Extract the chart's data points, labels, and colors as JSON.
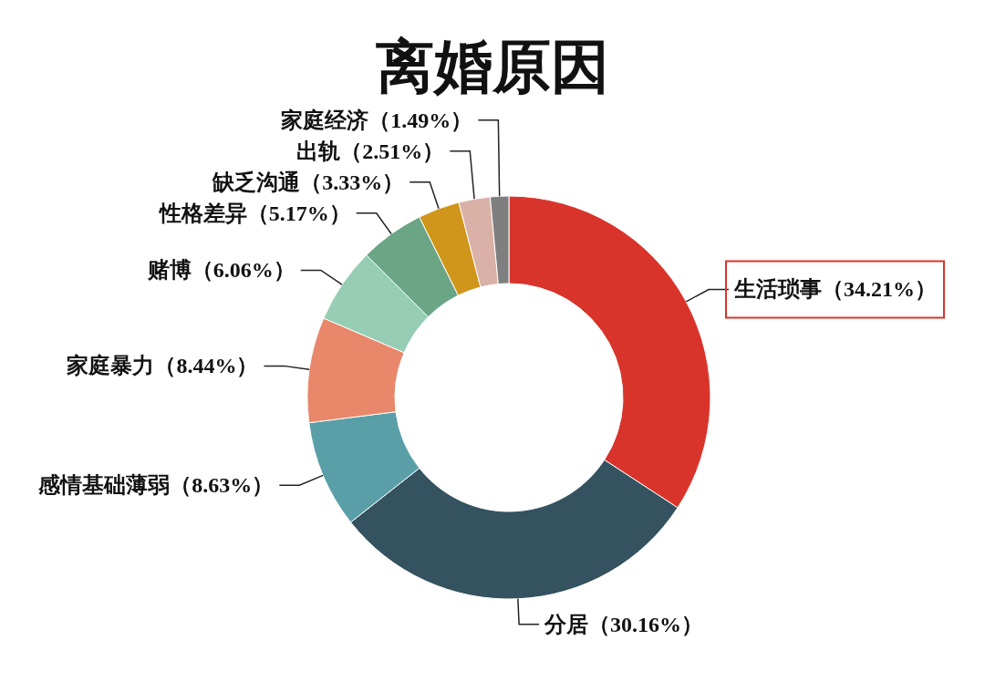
{
  "chart_data": {
    "type": "donut",
    "title": "离婚原因",
    "categories": [
      "生活琐事",
      "分居",
      "感情基础薄弱",
      "家庭暴力",
      "赌博",
      "性格差异",
      "缺乏沟通",
      "出轨",
      "家庭经济"
    ],
    "values": [
      34.21,
      30.16,
      8.63,
      8.44,
      6.06,
      5.17,
      3.33,
      2.51,
      1.49
    ],
    "value_labels": [
      "（34.21%）",
      "（30.16%）",
      "（8.63%）",
      "（8.44%）",
      "（6.06%）",
      "（5.17%）",
      "（3.33%）",
      "（2.51%）",
      "（1.49%）"
    ],
    "colors": [
      "#d9342b",
      "#34525f",
      "#5a9fa8",
      "#e8876a",
      "#97cdb5",
      "#6aa585",
      "#d0951b",
      "#d9b1a6",
      "#7f7f80"
    ]
  }
}
